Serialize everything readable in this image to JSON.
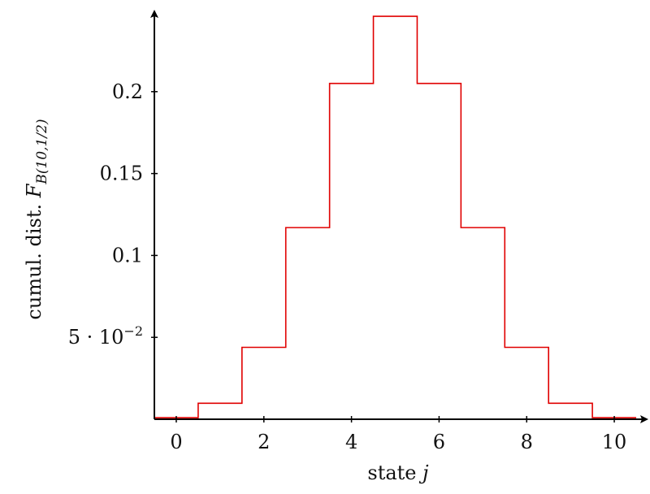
{
  "chart_data": {
    "type": "line",
    "step": "centered",
    "x": [
      0,
      1,
      2,
      3,
      4,
      5,
      6,
      7,
      8,
      9,
      10
    ],
    "series": [
      {
        "color": "#e00000",
        "values": [
          0.000977,
          0.00977,
          0.0439,
          0.117,
          0.205,
          0.246,
          0.205,
          0.117,
          0.0439,
          0.00977,
          0.000977
        ]
      }
    ],
    "xlim": [
      -0.5,
      10.5
    ],
    "ylim": [
      0,
      0.25
    ],
    "xticks": [
      0,
      2,
      4,
      6,
      8,
      10
    ],
    "xtick_labels": [
      "0",
      "2",
      "4",
      "6",
      "8",
      "10"
    ],
    "yticks": [
      0.05,
      0.1,
      0.15,
      0.2
    ],
    "ytick_labels": [
      "5 · 10",
      "0.1",
      "0.15",
      "0.2"
    ],
    "ytick_label_superscripts": [
      "−2",
      "",
      "",
      ""
    ],
    "xlabel": {
      "text": "state ",
      "var": "j"
    },
    "ylabel": {
      "text": "cumul. dist. ",
      "var": "F",
      "sub": "B(10,1/2)"
    },
    "grid": false,
    "legend": "none"
  }
}
